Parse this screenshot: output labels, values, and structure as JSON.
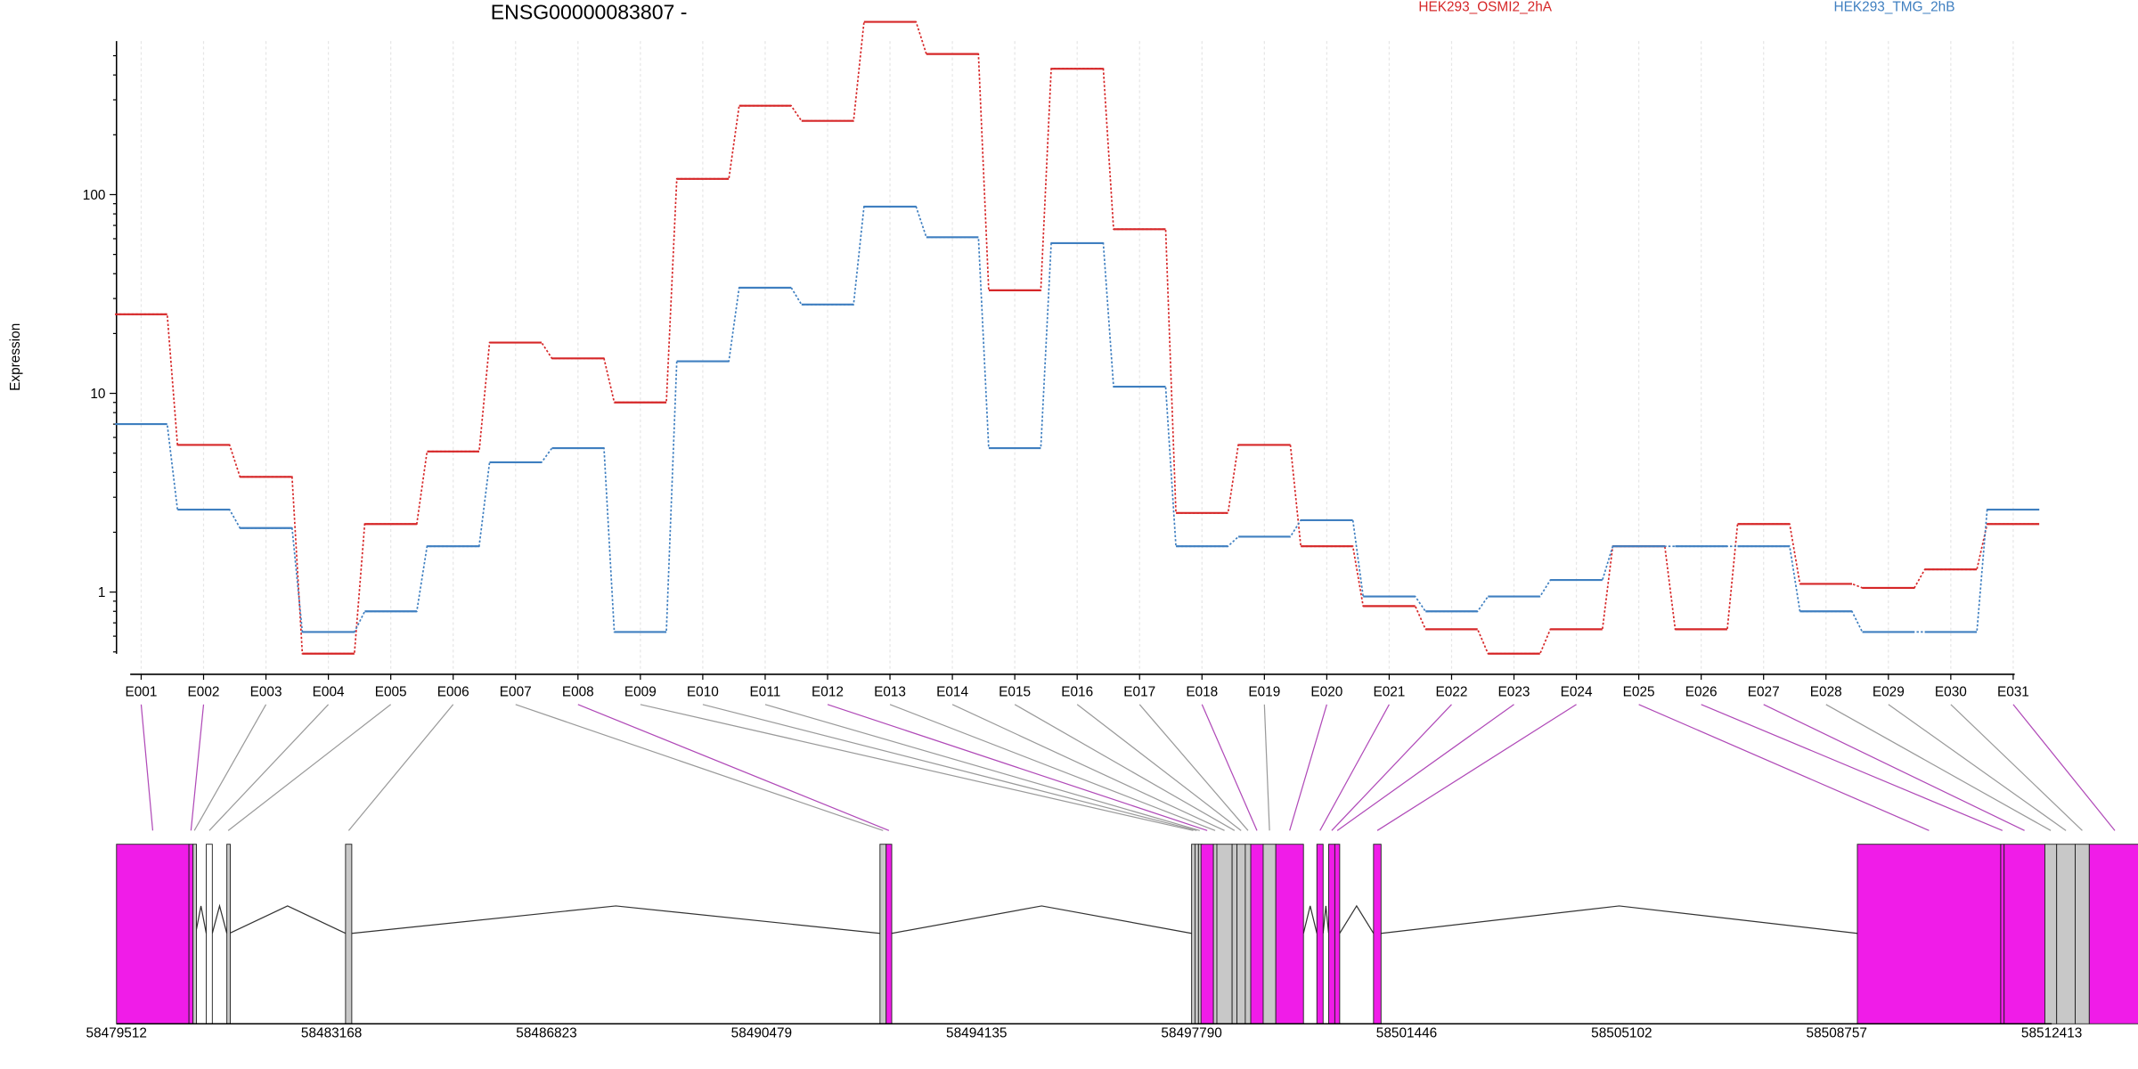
{
  "chart_data": {
    "type": "line",
    "title": "ENSG00000083807 -",
    "ylabel": "Expression",
    "xlabel": "",
    "yscale": "log",
    "ylim": [
      0.4,
      900
    ],
    "yticks": [
      1,
      10,
      100
    ],
    "ytick_labels": [
      "1",
      "10",
      "100"
    ],
    "legend_position": "top",
    "grid": "vertical dashed at each exon",
    "categories": [
      "E001",
      "E002",
      "E003",
      "E004",
      "E005",
      "E006",
      "E007",
      "E008",
      "E009",
      "E010",
      "E011",
      "E012",
      "E013",
      "E014",
      "E015",
      "E016",
      "E017",
      "E018",
      "E019",
      "E020",
      "E021",
      "E022",
      "E023",
      "E024",
      "E025",
      "E026",
      "E027",
      "E028",
      "E029",
      "E030",
      "E031"
    ],
    "series": [
      {
        "name": "HEK293_OSMI2_2hA",
        "color": "#d62728",
        "values": [
          25,
          5.5,
          3.8,
          0.49,
          2.2,
          5.1,
          18,
          15,
          9,
          120,
          280,
          235,
          740,
          510,
          33,
          430,
          67,
          2.5,
          5.5,
          1.7,
          0.85,
          0.65,
          0.49,
          0.65,
          1.7,
          0.65,
          2.2,
          1.1,
          1.05,
          1.3,
          2.2
        ]
      },
      {
        "name": "HEK293_TMG_2hB",
        "color": "#3f7fc0",
        "values": [
          7,
          2.6,
          2.1,
          0.63,
          0.8,
          1.7,
          4.5,
          5.3,
          0.63,
          14.5,
          34,
          28,
          87,
          61,
          5.3,
          57,
          10.8,
          1.7,
          1.9,
          2.3,
          0.95,
          0.8,
          0.95,
          1.15,
          1.7,
          1.7,
          1.7,
          0.8,
          0.63,
          0.63,
          2.6
        ]
      }
    ],
    "gene_model": {
      "coordinate_labels": [
        "58479512",
        "58483168",
        "58486823",
        "58490479",
        "58494135",
        "58497790",
        "58501446",
        "58505102",
        "58508757",
        "58512413"
      ],
      "coordinate_range": [
        58479512,
        58512413
      ],
      "highlight_color": "#f01ce8",
      "other_color": "#c8c8c8",
      "exons": [
        {
          "id": "E001",
          "start": 58479512,
          "end": 58480744,
          "highlight": true
        },
        {
          "id": "E002",
          "start": 58480744,
          "end": 58480813,
          "highlight": true
        },
        {
          "id": "E003",
          "start": 58480813,
          "end": 58480858,
          "highlight": false
        },
        {
          "id": "E004",
          "start": 58481038,
          "end": 58481141,
          "highlight": false,
          "outline": true
        },
        {
          "id": "E005",
          "start": 58481388,
          "end": 58481434,
          "highlight": false
        },
        {
          "id": "E006",
          "start": 58483406,
          "end": 58483512,
          "highlight": false
        },
        {
          "id": "E007",
          "start": 58492492,
          "end": 58492597,
          "highlight": false
        },
        {
          "id": "E008",
          "start": 58492597,
          "end": 58492692,
          "highlight": true
        },
        {
          "id": "E009",
          "start": 58497790,
          "end": 58497848,
          "highlight": false
        },
        {
          "id": "E010",
          "start": 58497848,
          "end": 58497907,
          "highlight": false
        },
        {
          "id": "E011",
          "start": 58497907,
          "end": 58497950,
          "highlight": false
        },
        {
          "id": "E012",
          "start": 58497950,
          "end": 58498161,
          "highlight": true
        },
        {
          "id": "E013",
          "start": 58498161,
          "end": 58498220,
          "highlight": false
        },
        {
          "id": "E014",
          "start": 58498220,
          "end": 58498479,
          "highlight": false
        },
        {
          "id": "E015",
          "start": 58498479,
          "end": 58498561,
          "highlight": false
        },
        {
          "id": "E016",
          "start": 58498561,
          "end": 58498703,
          "highlight": false
        },
        {
          "id": "E017",
          "start": 58498703,
          "end": 58498796,
          "highlight": false
        },
        {
          "id": "E018",
          "start": 58498796,
          "end": 58499007,
          "highlight": true
        },
        {
          "id": "E019",
          "start": 58499007,
          "end": 58499222,
          "highlight": false
        },
        {
          "id": "E020",
          "start": 58499222,
          "end": 58499692,
          "highlight": true
        },
        {
          "id": "E021",
          "start": 58499920,
          "end": 58500026,
          "highlight": true
        },
        {
          "id": "E022",
          "start": 58500120,
          "end": 58500225,
          "highlight": true
        },
        {
          "id": "E023",
          "start": 58500225,
          "end": 58500308,
          "highlight": true
        },
        {
          "id": "E024",
          "start": 58500883,
          "end": 58501011,
          "highlight": true
        },
        {
          "id": "E025",
          "start": 58509109,
          "end": 58511546,
          "highlight": true
        },
        {
          "id": "E026",
          "start": 58511546,
          "end": 58511604,
          "highlight": true
        },
        {
          "id": "E027",
          "start": 58511604,
          "end": 58512297,
          "highlight": true
        },
        {
          "id": "E028",
          "start": 58512297,
          "end": 58512497,
          "highlight": false
        },
        {
          "id": "E029",
          "start": 58512497,
          "end": 58512813,
          "highlight": false
        },
        {
          "id": "E030",
          "start": 58512813,
          "end": 58513052,
          "highlight": false
        },
        {
          "id": "E031",
          "start": 58513052,
          "end": 58513921,
          "highlight": true
        }
      ]
    }
  }
}
